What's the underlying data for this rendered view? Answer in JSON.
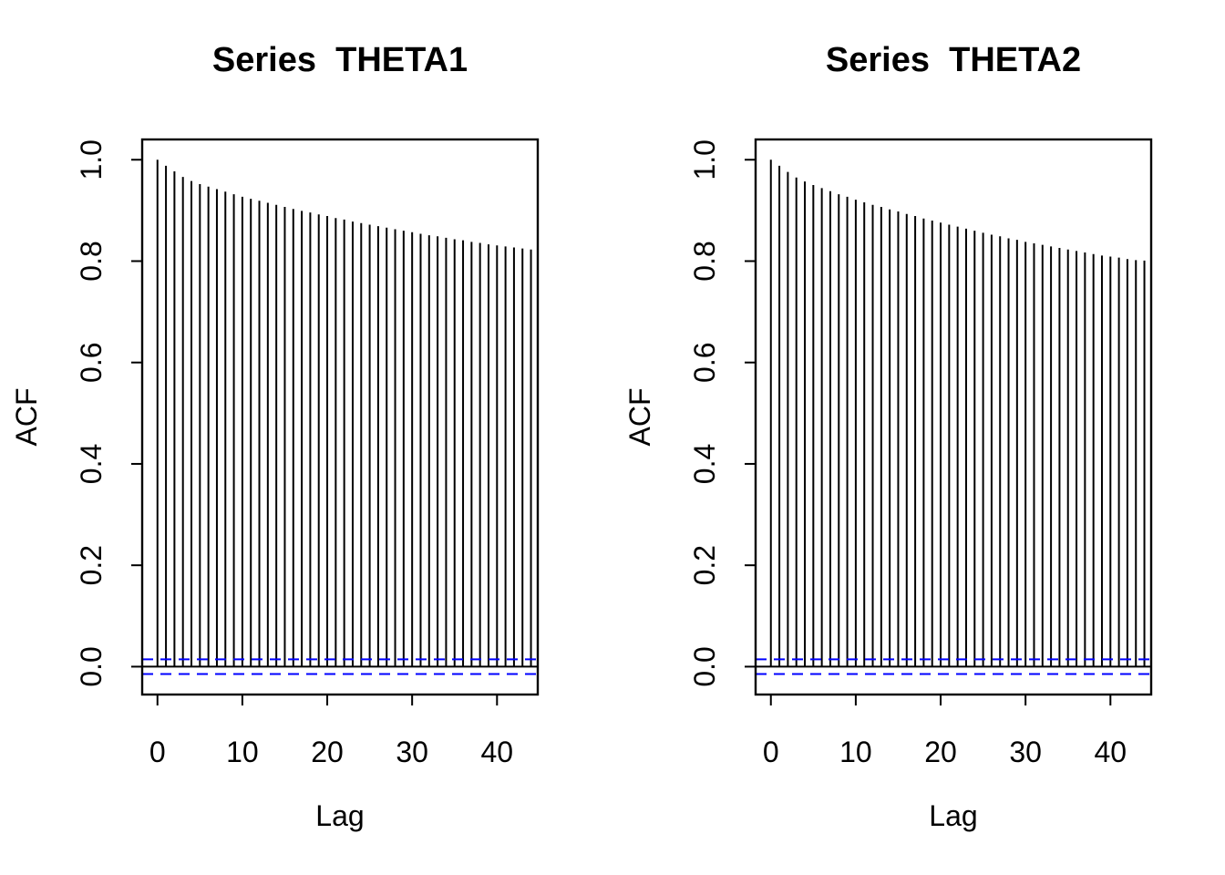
{
  "figure": {
    "background": "#FFFFFF",
    "kind": "R acf autocorrelation plots, two panels side by side"
  },
  "chart_data": [
    {
      "type": "bar",
      "title": "Series  THETA1",
      "xlabel": "Lag",
      "ylabel": "ACF",
      "x": [
        0,
        1,
        2,
        3,
        4,
        5,
        6,
        7,
        8,
        9,
        10,
        11,
        12,
        13,
        14,
        15,
        16,
        17,
        18,
        19,
        20,
        21,
        22,
        23,
        24,
        25,
        26,
        27,
        28,
        29,
        30,
        31,
        32,
        33,
        34,
        35,
        36,
        37,
        38,
        39,
        40,
        41,
        42,
        43,
        44
      ],
      "values": [
        1.0,
        0.988,
        0.977,
        0.966,
        0.958,
        0.952,
        0.947,
        0.942,
        0.937,
        0.932,
        0.927,
        0.923,
        0.919,
        0.915,
        0.911,
        0.907,
        0.903,
        0.899,
        0.896,
        0.892,
        0.889,
        0.885,
        0.882,
        0.878,
        0.875,
        0.872,
        0.869,
        0.866,
        0.863,
        0.86,
        0.857,
        0.854,
        0.851,
        0.849,
        0.846,
        0.843,
        0.841,
        0.838,
        0.836,
        0.833,
        0.831,
        0.829,
        0.827,
        0.825,
        0.823
      ],
      "conf_upper": 0.0145,
      "conf_lower": -0.0145,
      "conf_style": "dashed",
      "conf_color": "#0000FF",
      "bar_color": "#000000",
      "xlim": [
        -1.8,
        44.8
      ],
      "ylim": [
        -0.055,
        1.04
      ],
      "xtick_values": [
        0,
        10,
        20,
        30,
        40
      ],
      "xtick_labels": [
        "0",
        "10",
        "20",
        "30",
        "40"
      ],
      "ytick_values": [
        0.0,
        0.2,
        0.4,
        0.6,
        0.8,
        1.0
      ],
      "ytick_labels": [
        "0.0",
        "0.2",
        "0.4",
        "0.6",
        "0.8",
        "1.0"
      ],
      "grid": false
    },
    {
      "type": "bar",
      "title": "Series  THETA2",
      "xlabel": "Lag",
      "ylabel": "ACF",
      "x": [
        0,
        1,
        2,
        3,
        4,
        5,
        6,
        7,
        8,
        9,
        10,
        11,
        12,
        13,
        14,
        15,
        16,
        17,
        18,
        19,
        20,
        21,
        22,
        23,
        24,
        25,
        26,
        27,
        28,
        29,
        30,
        31,
        32,
        33,
        34,
        35,
        36,
        37,
        38,
        39,
        40,
        41,
        42,
        43,
        44
      ],
      "values": [
        1.0,
        0.988,
        0.976,
        0.965,
        0.957,
        0.95,
        0.944,
        0.938,
        0.932,
        0.927,
        0.921,
        0.916,
        0.911,
        0.907,
        0.902,
        0.898,
        0.893,
        0.889,
        0.884,
        0.88,
        0.876,
        0.872,
        0.868,
        0.864,
        0.86,
        0.856,
        0.852,
        0.849,
        0.845,
        0.842,
        0.838,
        0.835,
        0.832,
        0.829,
        0.826,
        0.823,
        0.82,
        0.817,
        0.814,
        0.811,
        0.809,
        0.807,
        0.804,
        0.802,
        0.801
      ],
      "conf_upper": 0.0145,
      "conf_lower": -0.0145,
      "conf_style": "dashed",
      "conf_color": "#0000FF",
      "bar_color": "#000000",
      "xlim": [
        -1.8,
        44.8
      ],
      "ylim": [
        -0.055,
        1.04
      ],
      "xtick_values": [
        0,
        10,
        20,
        30,
        40
      ],
      "xtick_labels": [
        "0",
        "10",
        "20",
        "30",
        "40"
      ],
      "ytick_values": [
        0.0,
        0.2,
        0.4,
        0.6,
        0.8,
        1.0
      ],
      "ytick_labels": [
        "0.0",
        "0.2",
        "0.4",
        "0.6",
        "0.8",
        "1.0"
      ],
      "grid": false
    }
  ]
}
